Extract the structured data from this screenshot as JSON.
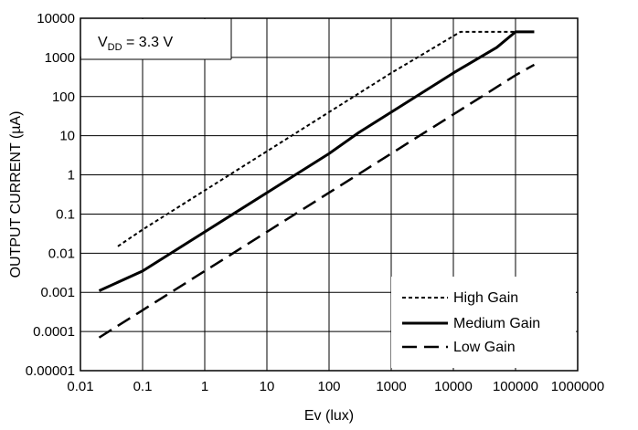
{
  "chart_data": {
    "type": "line",
    "xlabel": "Ev (lux)",
    "ylabel": "OUTPUT CURRENT (µA)",
    "xscale": "log",
    "yscale": "log",
    "xlim": [
      0.01,
      1000000
    ],
    "ylim": [
      1e-05,
      10000
    ],
    "grid": true,
    "legend_position": "bottom-right",
    "x_tick_labels": [
      "0.01",
      "0.1",
      "1",
      "10",
      "100",
      "1000",
      "10000",
      "100000",
      "1000000"
    ],
    "y_tick_labels": [
      "0.00001",
      "0.0001",
      "0.001",
      "0.01",
      "0.1",
      "1",
      "10",
      "100",
      "1000",
      "10000"
    ],
    "annotation": {
      "main": "V",
      "sub": "DD",
      "rest": " = 3.3 V"
    },
    "series": [
      {
        "name": "High Gain",
        "style": "dotted",
        "x": [
          0.04,
          0.1,
          1,
          10,
          100,
          1000,
          13000,
          15000,
          100000,
          200000
        ],
        "y": [
          0.015,
          0.04,
          0.4,
          4,
          40,
          400,
          4500,
          4500,
          4500,
          4500
        ]
      },
      {
        "name": "Medium Gain",
        "style": "solid",
        "x": [
          0.02,
          0.1,
          1,
          10,
          100,
          300,
          1000,
          10000,
          50000,
          100000,
          200000
        ],
        "y": [
          0.0011,
          0.0035,
          0.035,
          0.35,
          3.5,
          12,
          40,
          400,
          1800,
          4500,
          4500
        ]
      },
      {
        "name": "Low Gain",
        "style": "dashed",
        "x": [
          0.02,
          0.1,
          1,
          10,
          100,
          1000,
          10000,
          100000,
          200000
        ],
        "y": [
          7e-05,
          0.00035,
          0.0035,
          0.035,
          0.35,
          3.5,
          35,
          350,
          650
        ]
      }
    ]
  }
}
